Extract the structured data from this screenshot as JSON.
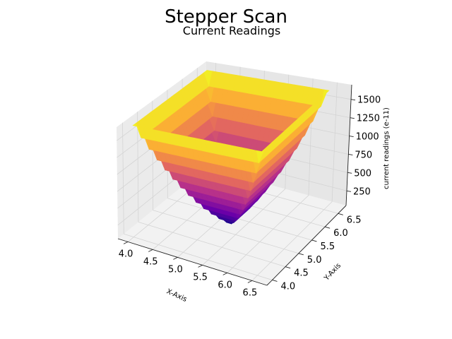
{
  "figure": {
    "suptitle": "Stepper Scan",
    "subtitle": "Current Readings"
  },
  "chart_data": {
    "type": "surface3d",
    "title": "Current Readings",
    "xlabel": "X-Axis",
    "ylabel": "Y-Axis",
    "zlabel": "current readings (e-11)",
    "xlim": [
      3.8,
      6.8
    ],
    "ylim": [
      3.8,
      6.8
    ],
    "zlim": [
      50,
      1700
    ],
    "x_ticks": [
      4.0,
      4.5,
      5.0,
      5.5,
      6.0,
      6.5
    ],
    "x_tick_labels": [
      "4.0",
      "4.5",
      "5.0",
      "5.5",
      "6.0",
      "6.5"
    ],
    "y_ticks": [
      4.0,
      4.5,
      5.0,
      5.5,
      6.0,
      6.5
    ],
    "y_tick_labels": [
      "4.0",
      "4.5",
      "5.0",
      "5.5",
      "6.0",
      "6.5"
    ],
    "z_ticks": [
      250,
      500,
      750,
      1000,
      1250,
      1500
    ],
    "z_tick_labels": [
      "250",
      "500",
      "750",
      "1000",
      "1250",
      "1500"
    ],
    "colormap": "plasma",
    "colormap_stops": [
      "#0d0887",
      "#6a00a8",
      "#b12a90",
      "#e16462",
      "#fca636",
      "#f0f921"
    ],
    "pane_color": "#f2f2f2",
    "grid_color": "#d4d4d4",
    "grid": true,
    "surface": {
      "x_range": [
        4.0,
        6.5
      ],
      "y_range": [
        4.0,
        6.5
      ],
      "grid_points": 26,
      "center": [
        5.25,
        5.25
      ],
      "z_min": 60,
      "z_max": 1690,
      "shape": "square-bowl"
    }
  }
}
